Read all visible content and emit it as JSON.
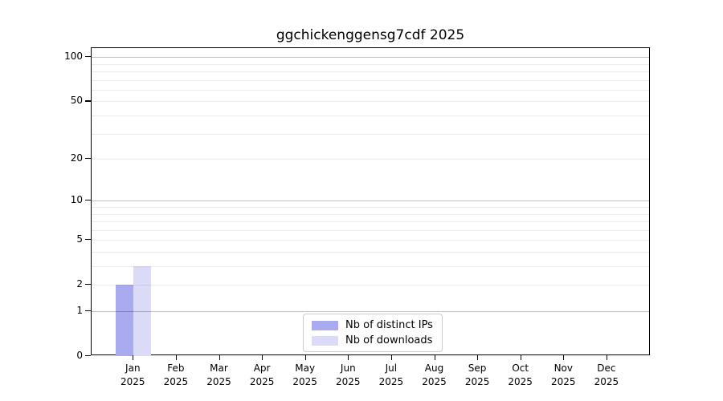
{
  "title": "ggchickenggensg7cdf 2025",
  "chart_data": {
    "type": "bar",
    "title": "ggchickenggensg7cdf 2025",
    "categories": [
      "Jan 2025",
      "Feb 2025",
      "Mar 2025",
      "Apr 2025",
      "May 2025",
      "Jun 2025",
      "Jul 2025",
      "Aug 2025",
      "Sep 2025",
      "Oct 2025",
      "Nov 2025",
      "Dec 2025"
    ],
    "series": [
      {
        "name": "Nb of distinct IPs",
        "color": "#aaaaf0",
        "values": [
          2,
          0,
          0,
          0,
          0,
          0,
          0,
          0,
          0,
          0,
          0,
          0
        ]
      },
      {
        "name": "Nb of downloads",
        "color": "#dbdbf8",
        "values": [
          3,
          0,
          0,
          0,
          0,
          0,
          0,
          0,
          0,
          0,
          0,
          0
        ]
      }
    ],
    "yscale": "log1p",
    "ylim": [
      0,
      115
    ],
    "yticks": [
      100,
      50,
      20,
      10,
      5,
      2,
      1,
      0
    ],
    "xlabel": "",
    "ylabel": "",
    "grid": "horizontal",
    "legend_position": "bottom-center"
  }
}
